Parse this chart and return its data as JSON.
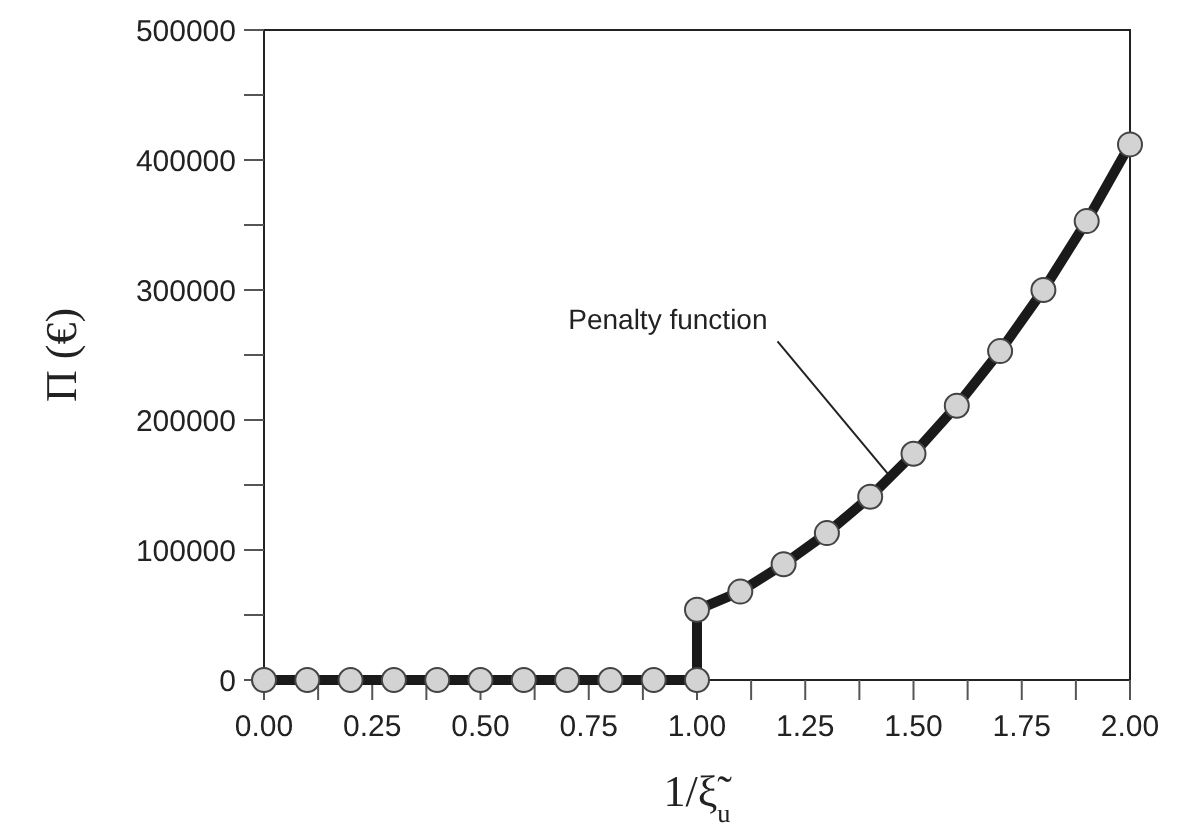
{
  "chart_data": {
    "type": "line",
    "xlabel": "1/ξ̃$_{u}$",
    "ylabel": "Π (€)",
    "x": [
      0,
      0.1,
      0.2,
      0.3,
      0.4,
      0.5,
      0.6,
      0.7,
      0.8,
      0.9,
      1.0,
      1.0,
      1.1,
      1.2,
      1.3,
      1.4,
      1.5,
      1.6,
      1.7,
      1.8,
      1.9,
      2.0
    ],
    "series": [
      {
        "color": "#1a1a1a",
        "values": [
          0,
          0,
          0,
          0,
          0,
          0,
          0,
          0,
          0,
          0,
          0,
          54000,
          68000,
          89000,
          113000,
          141000,
          174000,
          211000,
          253000,
          300000,
          353000,
          412000
        ]
      }
    ],
    "marker": "circle",
    "line_style": "solid",
    "grid": false,
    "xlim": [
      0,
      2
    ],
    "ylim": [
      0,
      500000
    ],
    "xticks": [
      {
        "value": 0,
        "label": "0.00"
      },
      {
        "value": 0.125,
        "label": null
      },
      {
        "value": 0.25,
        "label": "0.25"
      },
      {
        "value": 0.375,
        "label": null
      },
      {
        "value": 0.5,
        "label": "0.50"
      },
      {
        "value": 0.625,
        "label": null
      },
      {
        "value": 0.75,
        "label": "0.75"
      },
      {
        "value": 0.875,
        "label": null
      },
      {
        "value": 1,
        "label": "1.00"
      },
      {
        "value": 1.125,
        "label": null
      },
      {
        "value": 1.25,
        "label": "1.25"
      },
      {
        "value": 1.375,
        "label": null
      },
      {
        "value": 1.5,
        "label": "1.50"
      },
      {
        "value": 1.625,
        "label": null
      },
      {
        "value": 1.75,
        "label": "1.75"
      },
      {
        "value": 1.875,
        "label": null
      },
      {
        "value": 2,
        "label": "2.00"
      }
    ],
    "yticks": [
      0,
      {
        "value": 50000,
        "label": null
      },
      100000,
      {
        "value": 150000,
        "label": null
      },
      200000,
      {
        "value": 250000,
        "label": null
      },
      300000,
      {
        "value": 350000,
        "label": null
      },
      400000,
      {
        "value": 450000,
        "label": null
      },
      500000
    ],
    "annotations": [
      {
        "text": "Penalty function",
        "x": 1.44,
        "y": 159000
      }
    ]
  }
}
